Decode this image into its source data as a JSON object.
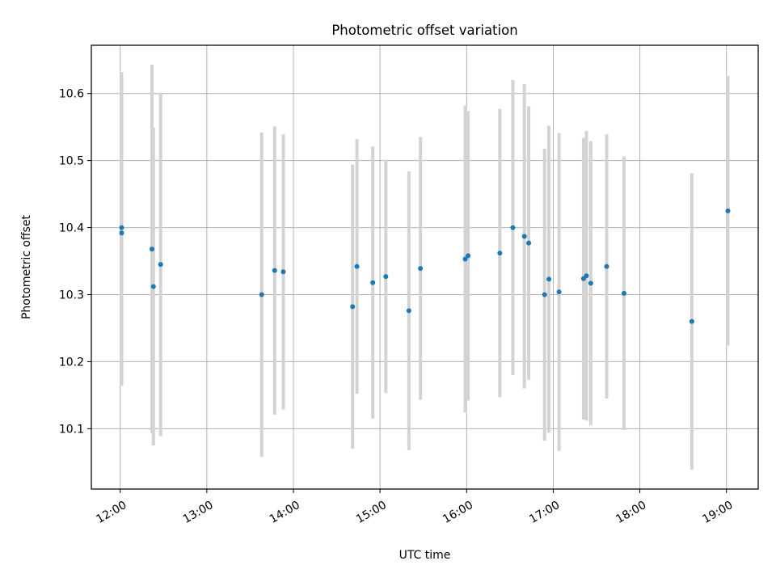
{
  "chart_data": {
    "type": "scatter",
    "title": "Photometric offset variation",
    "xlabel": "UTC time",
    "ylabel": "Photometric offset",
    "xlim": [
      "11:40",
      "19:22"
    ],
    "ylim": [
      10.01,
      10.672
    ],
    "xticks": [
      "12:00",
      "13:00",
      "14:00",
      "15:00",
      "16:00",
      "17:00",
      "18:00",
      "19:00"
    ],
    "yticks": [
      "10.1",
      "10.2",
      "10.3",
      "10.4",
      "10.5",
      "10.6"
    ],
    "grid": true,
    "colors": {
      "point": "#1f77b4",
      "errorbar": "#d3d3d3",
      "grid": "#b0b0b0"
    },
    "points": [
      {
        "x": "12:01",
        "y": 10.392,
        "yerr": 0.228
      },
      {
        "x": "12:01",
        "y": 10.4,
        "yerr": 0.232
      },
      {
        "x": "12:22",
        "y": 10.368,
        "yerr": 0.275
      },
      {
        "x": "12:23",
        "y": 10.312,
        "yerr": 0.237
      },
      {
        "x": "12:28",
        "y": 10.345,
        "yerr": 0.256
      },
      {
        "x": "13:38",
        "y": 10.3,
        "yerr": 0.242
      },
      {
        "x": "13:47",
        "y": 10.336,
        "yerr": 0.215
      },
      {
        "x": "13:53",
        "y": 10.334,
        "yerr": 0.205
      },
      {
        "x": "14:41",
        "y": 10.282,
        "yerr": 0.212
      },
      {
        "x": "14:44",
        "y": 10.342,
        "yerr": 0.19
      },
      {
        "x": "14:55",
        "y": 10.318,
        "yerr": 0.203
      },
      {
        "x": "15:04",
        "y": 10.327,
        "yerr": 0.174
      },
      {
        "x": "15:20",
        "y": 10.276,
        "yerr": 0.208
      },
      {
        "x": "15:28",
        "y": 10.339,
        "yerr": 0.196
      },
      {
        "x": "15:59",
        "y": 10.353,
        "yerr": 0.229
      },
      {
        "x": "16:01",
        "y": 10.358,
        "yerr": 0.216
      },
      {
        "x": "16:23",
        "y": 10.362,
        "yerr": 0.215
      },
      {
        "x": "16:32",
        "y": 10.4,
        "yerr": 0.22
      },
      {
        "x": "16:40",
        "y": 10.387,
        "yerr": 0.227
      },
      {
        "x": "16:43",
        "y": 10.377,
        "yerr": 0.204
      },
      {
        "x": "16:54",
        "y": 10.3,
        "yerr": 0.218
      },
      {
        "x": "16:57",
        "y": 10.323,
        "yerr": 0.229
      },
      {
        "x": "17:04",
        "y": 10.304,
        "yerr": 0.237
      },
      {
        "x": "17:21",
        "y": 10.324,
        "yerr": 0.21
      },
      {
        "x": "17:23",
        "y": 10.328,
        "yerr": 0.216
      },
      {
        "x": "17:26",
        "y": 10.317,
        "yerr": 0.212
      },
      {
        "x": "17:37",
        "y": 10.342,
        "yerr": 0.197
      },
      {
        "x": "17:49",
        "y": 10.302,
        "yerr": 0.204
      },
      {
        "x": "18:36",
        "y": 10.26,
        "yerr": 0.221
      },
      {
        "x": "19:01",
        "y": 10.425,
        "yerr": 0.201
      }
    ]
  }
}
